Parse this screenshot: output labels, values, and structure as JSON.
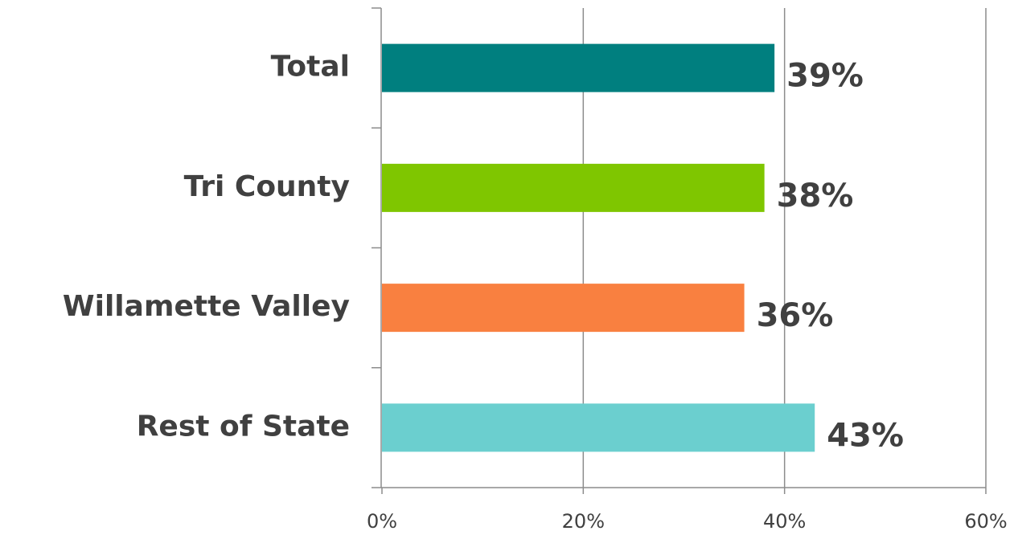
{
  "chart_data": {
    "type": "hbar",
    "categories": [
      "Total",
      "Tri County",
      "Willamette Valley",
      "Rest of State"
    ],
    "values": [
      39,
      38,
      36,
      43
    ],
    "value_labels": [
      "39%",
      "38%",
      "36%",
      "43%"
    ],
    "colors": [
      "#007f7f",
      "#7fc600",
      "#f98040",
      "#6bcfcf"
    ],
    "xlim": [
      0,
      60
    ],
    "xticks": [
      {
        "value": 0,
        "label": "0%"
      },
      {
        "value": 20,
        "label": "20%"
      },
      {
        "value": 40,
        "label": "40%"
      },
      {
        "value": 60,
        "label": "60%"
      }
    ],
    "grid": true
  }
}
